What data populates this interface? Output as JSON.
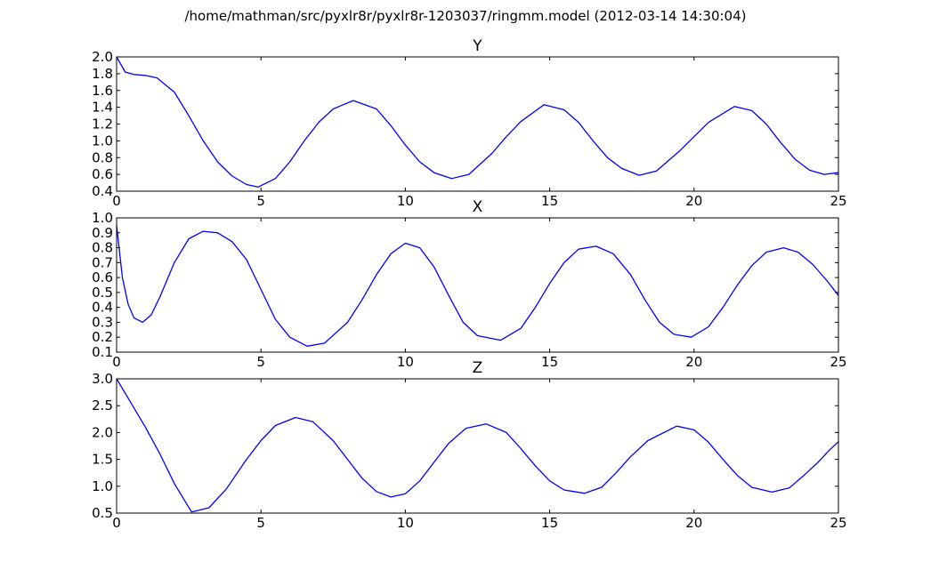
{
  "figure_title": "/home/mathman/src/pyxlr8r/pyxlr8r-1203037/ringmm.model (2012-03-14 14:30:04)",
  "line_color": "#0000ff",
  "chart_data": [
    {
      "type": "line",
      "title": "Y",
      "xlabel": "",
      "ylabel": "",
      "xlim": [
        0,
        25
      ],
      "ylim": [
        0.4,
        2.0
      ],
      "xticks": [
        "0",
        "5",
        "10",
        "15",
        "20",
        "25"
      ],
      "yticks": [
        "0.4",
        "0.6",
        "0.8",
        "1.0",
        "1.2",
        "1.4",
        "1.6",
        "1.8",
        "2.0"
      ],
      "grid": false,
      "legend": "none",
      "series": [
        {
          "x": [
            0,
            0.3,
            0.6,
            1,
            1.4,
            2,
            2.5,
            3,
            3.5,
            4,
            4.5,
            4.9,
            5.5,
            6,
            6.5,
            7,
            7.5,
            8.2,
            9,
            9.5,
            10,
            10.5,
            11,
            11.6,
            12.2,
            13,
            13.5,
            14,
            14.8,
            15.5,
            16,
            16.5,
            17,
            17.5,
            18.1,
            18.7,
            19.5,
            20,
            20.5,
            21.4,
            22,
            22.5,
            23,
            23.5,
            24,
            24.5,
            25
          ],
          "y": [
            2.0,
            1.82,
            1.79,
            1.78,
            1.75,
            1.58,
            1.3,
            1.0,
            0.75,
            0.58,
            0.48,
            0.45,
            0.55,
            0.75,
            1.0,
            1.22,
            1.38,
            1.48,
            1.38,
            1.18,
            0.95,
            0.75,
            0.62,
            0.55,
            0.6,
            0.85,
            1.05,
            1.23,
            1.43,
            1.37,
            1.22,
            1.0,
            0.8,
            0.67,
            0.59,
            0.64,
            0.88,
            1.05,
            1.22,
            1.41,
            1.36,
            1.2,
            0.98,
            0.78,
            0.65,
            0.6,
            0.62
          ]
        }
      ]
    },
    {
      "type": "line",
      "title": "X",
      "xlabel": "",
      "ylabel": "",
      "xlim": [
        0,
        25
      ],
      "ylim": [
        0.1,
        1.0
      ],
      "xticks": [
        "0",
        "5",
        "10",
        "15",
        "20",
        "25"
      ],
      "yticks": [
        "0.1",
        "0.2",
        "0.3",
        "0.4",
        "0.5",
        "0.6",
        "0.7",
        "0.8",
        "0.9",
        "1.0"
      ],
      "grid": false,
      "legend": "none",
      "series": [
        {
          "x": [
            0,
            0.2,
            0.4,
            0.6,
            0.9,
            1.2,
            1.5,
            2,
            2.5,
            3,
            3.5,
            4,
            4.5,
            5,
            5.5,
            6,
            6.6,
            7.2,
            8,
            8.5,
            9,
            9.5,
            10,
            10.5,
            11,
            11.5,
            12,
            12.5,
            13.3,
            14,
            14.5,
            15,
            15.5,
            16,
            16.6,
            17.2,
            17.8,
            18.3,
            18.8,
            19.3,
            19.9,
            20.5,
            21,
            21.5,
            22,
            22.5,
            23.1,
            23.6,
            24.1,
            24.6,
            25
          ],
          "y": [
            0.95,
            0.6,
            0.42,
            0.33,
            0.3,
            0.35,
            0.47,
            0.7,
            0.86,
            0.91,
            0.9,
            0.84,
            0.72,
            0.52,
            0.32,
            0.2,
            0.14,
            0.16,
            0.3,
            0.45,
            0.62,
            0.76,
            0.83,
            0.8,
            0.67,
            0.48,
            0.3,
            0.21,
            0.18,
            0.26,
            0.4,
            0.56,
            0.7,
            0.79,
            0.81,
            0.76,
            0.62,
            0.45,
            0.3,
            0.22,
            0.2,
            0.27,
            0.4,
            0.55,
            0.68,
            0.77,
            0.8,
            0.77,
            0.69,
            0.58,
            0.48
          ]
        }
      ]
    },
    {
      "type": "line",
      "title": "Z",
      "xlabel": "",
      "ylabel": "",
      "xlim": [
        0,
        25
      ],
      "ylim": [
        0.5,
        3.0
      ],
      "xticks": [
        "0",
        "5",
        "10",
        "15",
        "20",
        "25"
      ],
      "yticks": [
        "0.5",
        "1.0",
        "1.5",
        "2.0",
        "2.5",
        "3.0"
      ],
      "grid": false,
      "legend": "none",
      "series": [
        {
          "x": [
            0,
            0.5,
            1,
            1.5,
            2,
            2.6,
            3.2,
            3.8,
            4.5,
            5,
            5.5,
            6.2,
            6.8,
            7.5,
            8,
            8.5,
            9,
            9.5,
            10,
            10.5,
            11,
            11.5,
            12.1,
            12.8,
            13.5,
            14,
            14.5,
            15,
            15.5,
            16.2,
            16.8,
            17.3,
            17.8,
            18.4,
            19.4,
            20,
            20.5,
            21,
            21.5,
            22,
            22.7,
            23.3,
            23.8,
            24.3,
            24.7,
            25
          ],
          "y": [
            3.0,
            2.55,
            2.1,
            1.6,
            1.05,
            0.52,
            0.6,
            0.95,
            1.5,
            1.85,
            2.13,
            2.28,
            2.2,
            1.85,
            1.5,
            1.15,
            0.9,
            0.8,
            0.86,
            1.1,
            1.45,
            1.8,
            2.08,
            2.16,
            2.0,
            1.7,
            1.38,
            1.1,
            0.93,
            0.87,
            0.98,
            1.25,
            1.55,
            1.85,
            2.12,
            2.05,
            1.82,
            1.5,
            1.2,
            0.98,
            0.89,
            0.97,
            1.2,
            1.45,
            1.68,
            1.83
          ]
        }
      ]
    }
  ]
}
